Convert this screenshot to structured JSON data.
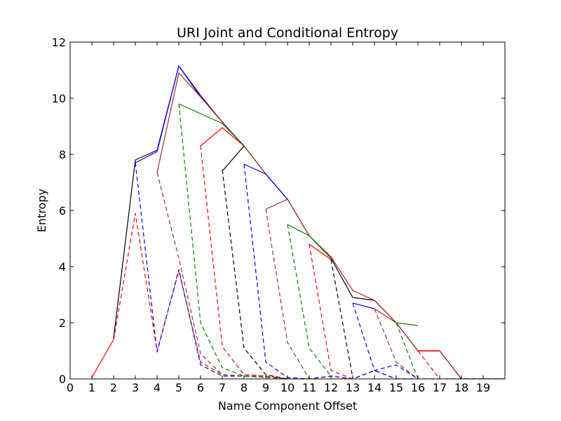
{
  "chart_data": {
    "type": "line",
    "title": "URI Joint and Conditional Entropy",
    "xlabel": "Name Component Offset",
    "ylabel": "Entropy",
    "xlim": [
      0,
      20
    ],
    "ylim": [
      0,
      12
    ],
    "xticks": [
      0,
      1,
      2,
      3,
      4,
      5,
      6,
      7,
      8,
      9,
      10,
      11,
      12,
      13,
      14,
      15,
      16,
      17,
      18,
      19
    ],
    "yticks": [
      0,
      2,
      4,
      6,
      8,
      10,
      12
    ],
    "grid": false,
    "legend": false,
    "series": [
      {
        "color": "#ff0000",
        "style": "solid",
        "x": [
          1,
          2
        ],
        "y": [
          0.05,
          1.4
        ]
      },
      {
        "color": "#ff0000",
        "style": "dashed",
        "x": [
          2,
          3,
          4,
          5,
          6,
          7,
          8,
          9,
          10,
          11,
          12,
          13,
          14,
          15,
          16,
          17,
          18,
          19,
          20
        ],
        "y": [
          1.4,
          5.9,
          1.0,
          3.85,
          0.6,
          0.15,
          0.1,
          0.1,
          0.0,
          0.0,
          0.1,
          0.0,
          0.3,
          0.0,
          0.0,
          0.0,
          0.0,
          0.0,
          0.0
        ]
      },
      {
        "color": "#000000",
        "style": "solid",
        "x": [
          2,
          3,
          4,
          5,
          6,
          7,
          8,
          9,
          10,
          11,
          12,
          13,
          14,
          15,
          16,
          17,
          18,
          19,
          20
        ],
        "y": [
          1.45,
          7.8,
          8.15,
          11.15,
          10.05,
          9.15,
          8.3,
          7.3,
          6.4,
          5.1,
          4.3,
          2.9,
          2.8,
          2.0,
          1.0,
          1.0,
          0.0,
          0.0,
          0.0
        ]
      },
      {
        "color": "#0000ff",
        "style": "solid",
        "x": [
          3,
          4,
          5,
          6,
          7,
          8
        ],
        "y": [
          7.7,
          8.1,
          11.15,
          10.1,
          9.15,
          8.3
        ]
      },
      {
        "color": "#0000ff",
        "style": "dashed",
        "x": [
          3,
          4,
          5,
          6,
          7,
          8,
          9,
          10,
          11,
          12,
          13,
          14,
          15,
          16,
          17,
          18,
          19,
          20
        ],
        "y": [
          7.7,
          0.95,
          3.9,
          0.5,
          0.1,
          0.1,
          0.1,
          0.0,
          0.0,
          0.1,
          0.0,
          0.3,
          0.0,
          0.0,
          0.0,
          0.0,
          0.0,
          0.0
        ]
      },
      {
        "color": "#a52a2a",
        "style": "solid",
        "x": [
          4,
          5,
          6,
          7,
          8,
          9,
          10,
          11,
          12,
          13,
          14,
          15,
          16,
          17,
          18
        ],
        "y": [
          7.35,
          10.9,
          10.05,
          9.15,
          8.3,
          7.3,
          6.4,
          5.1,
          4.35,
          3.15,
          2.8,
          2.0,
          1.0,
          1.0,
          0.0
        ]
      },
      {
        "color": "#a52a2a",
        "style": "dashed",
        "x": [
          4,
          5,
          6,
          7,
          8,
          9,
          10
        ],
        "y": [
          7.35,
          4.3,
          0.9,
          0.15,
          0.1,
          0.1,
          0.0
        ]
      },
      {
        "color": "#008000",
        "style": "solid",
        "x": [
          5,
          6,
          7,
          8
        ],
        "y": [
          9.8,
          9.45,
          9.1,
          8.3
        ]
      },
      {
        "color": "#008000",
        "style": "dashed",
        "x": [
          5,
          6,
          7,
          8,
          9,
          10
        ],
        "y": [
          9.8,
          2.0,
          0.4,
          0.1,
          0.05,
          0.0
        ]
      },
      {
        "color": "#ff0000",
        "style": "solid",
        "x": [
          6,
          7,
          8
        ],
        "y": [
          8.3,
          8.95,
          8.3
        ]
      },
      {
        "color": "#ff0000",
        "style": "dashed",
        "x": [
          6,
          7,
          8,
          9,
          10
        ],
        "y": [
          8.3,
          1.15,
          0.15,
          0.1,
          0.0
        ]
      },
      {
        "color": "#000000",
        "style": "solid",
        "x": [
          7,
          7.05,
          8
        ],
        "y": [
          7.45,
          7.45,
          8.3
        ]
      },
      {
        "color": "#000000",
        "style": "dashed",
        "x": [
          7,
          8,
          9,
          10
        ],
        "y": [
          7.45,
          1.1,
          0.15,
          0.0
        ]
      },
      {
        "color": "#0000ff",
        "style": "solid",
        "x": [
          8,
          9,
          10
        ],
        "y": [
          7.65,
          7.3,
          6.4
        ]
      },
      {
        "color": "#0000ff",
        "style": "dashed",
        "x": [
          8,
          9,
          10,
          11
        ],
        "y": [
          7.65,
          0.6,
          0.05,
          0.0
        ]
      },
      {
        "color": "#a52a2a",
        "style": "solid",
        "x": [
          9,
          10
        ],
        "y": [
          6.05,
          6.4
        ]
      },
      {
        "color": "#a52a2a",
        "style": "dashed",
        "x": [
          9,
          10,
          11
        ],
        "y": [
          6.05,
          1.3,
          0.0
        ]
      },
      {
        "color": "#008000",
        "style": "solid",
        "x": [
          10,
          11,
          12
        ],
        "y": [
          5.5,
          5.1,
          4.3
        ]
      },
      {
        "color": "#008000",
        "style": "dashed",
        "x": [
          10,
          11,
          12
        ],
        "y": [
          5.5,
          1.1,
          0.1
        ]
      },
      {
        "color": "#ff0000",
        "style": "solid",
        "x": [
          11,
          12
        ],
        "y": [
          4.8,
          4.25
        ]
      },
      {
        "color": "#ff0000",
        "style": "dashed",
        "x": [
          11,
          12,
          13
        ],
        "y": [
          4.8,
          0.3,
          0.0
        ]
      },
      {
        "color": "#000000",
        "style": "dashed",
        "x": [
          12,
          13
        ],
        "y": [
          4.25,
          0.05
        ]
      },
      {
        "color": "#0000ff",
        "style": "solid",
        "x": [
          13,
          14
        ],
        "y": [
          2.7,
          2.5
        ]
      },
      {
        "color": "#0000ff",
        "style": "dashed",
        "x": [
          13,
          14,
          15,
          16
        ],
        "y": [
          2.7,
          0.3,
          0.5,
          0.0
        ]
      },
      {
        "color": "#a52a2a",
        "style": "solid",
        "x": [
          14,
          15
        ],
        "y": [
          2.5,
          2.0
        ]
      },
      {
        "color": "#a52a2a",
        "style": "dashed",
        "x": [
          14,
          15,
          16
        ],
        "y": [
          2.5,
          0.6,
          0.0
        ]
      },
      {
        "color": "#008000",
        "style": "solid",
        "x": [
          15,
          16
        ],
        "y": [
          2.0,
          1.9
        ]
      },
      {
        "color": "#008000",
        "style": "dashed",
        "x": [
          15,
          16
        ],
        "y": [
          2.0,
          0.0
        ]
      },
      {
        "color": "#ff0000",
        "style": "solid",
        "x": [
          16,
          17
        ],
        "y": [
          1.0,
          1.0
        ]
      },
      {
        "color": "#ff0000",
        "style": "dashed",
        "x": [
          16,
          17
        ],
        "y": [
          1.0,
          0.0
        ]
      }
    ]
  }
}
